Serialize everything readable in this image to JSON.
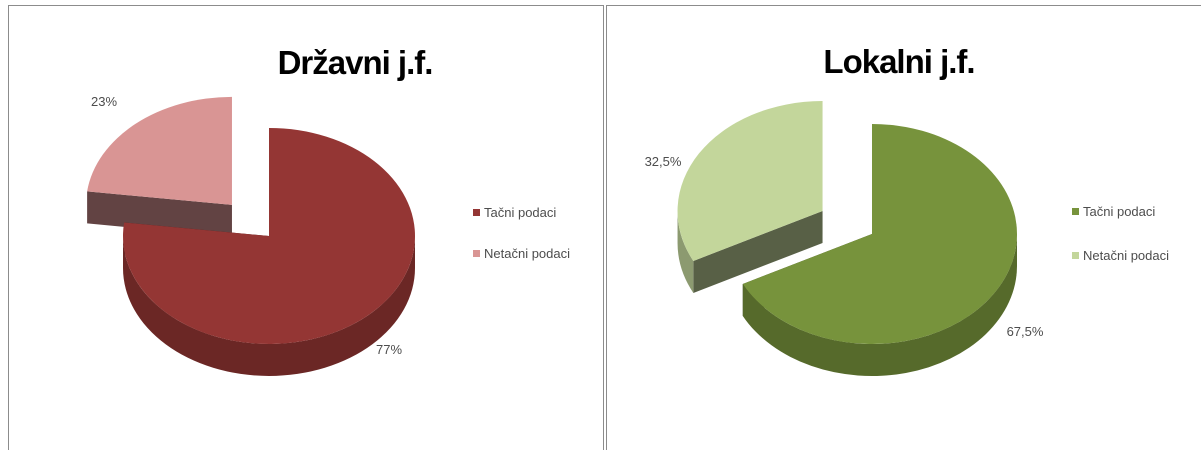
{
  "chart_data": [
    {
      "type": "pie",
      "title": "Državni j.f.",
      "categories": [
        "Tačni podaci",
        "Netačni podaci"
      ],
      "values": [
        77,
        23
      ],
      "data_labels": [
        "77%",
        "23%"
      ],
      "colors": [
        "#943634",
        "#d99594"
      ],
      "legend": "right",
      "exploded": "Netačni podaci",
      "style": "3d"
    },
    {
      "type": "pie",
      "title": "Lokalni j.f.",
      "categories": [
        "Tačni podaci",
        "Netačni podaci"
      ],
      "values": [
        67.5,
        32.5
      ],
      "data_labels": [
        "67,5%",
        "32,5%"
      ],
      "colors": [
        "#77933c",
        "#c3d69b"
      ],
      "legend": "right",
      "exploded": "Netačni podaci",
      "style": "3d"
    }
  ]
}
